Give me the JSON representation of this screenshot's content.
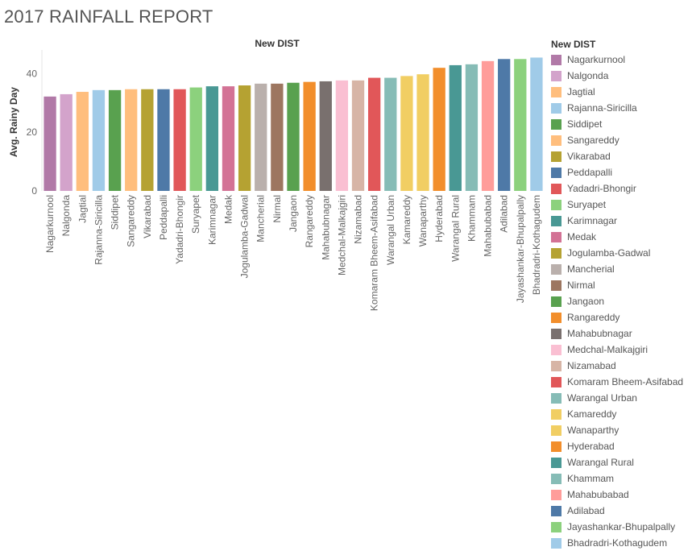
{
  "page": {
    "title": "2017 RAINFALL REPORT"
  },
  "chart_data": {
    "type": "bar",
    "title": "New DIST",
    "xlabel": "",
    "ylabel": "Avg. Rainy Day",
    "ylim": [
      0,
      47
    ],
    "yticks": [
      0,
      20,
      40
    ],
    "grid": false,
    "legend": {
      "title": "New DIST",
      "position": "right"
    },
    "categories": [
      "Nagarkurnool",
      "Nalgonda",
      "Jagtial",
      "Rajanna-Siricilla",
      "Siddipet",
      "Sangareddy",
      "Vikarabad",
      "Peddapalli",
      "Yadadri-Bhongir",
      "Suryapet",
      "Karimnagar",
      "Medak",
      "Jogulamba-Gadwal",
      "Mancherial",
      "Nirmal",
      "Jangaon",
      "Rangareddy",
      "Mahabubnagar",
      "Medchal-Malkajgiri",
      "Nizamabad",
      "Komaram Bheem-Asifabad",
      "Warangal Urban",
      "Kamareddy",
      "Wanaparthy",
      "Hyderabad",
      "Warangal Rural",
      "Khammam",
      "Mahabubabad",
      "Adilabad",
      "Jayashankar-Bhupalpally",
      "Bhadradri-Kothagudem"
    ],
    "values": [
      32.2,
      33.0,
      33.8,
      34.4,
      34.4,
      34.7,
      34.7,
      34.7,
      34.7,
      35.3,
      35.7,
      35.7,
      36.0,
      36.6,
      36.6,
      36.9,
      37.2,
      37.4,
      37.7,
      37.7,
      38.6,
      38.6,
      39.2,
      39.8,
      42.0,
      42.9,
      43.2,
      44.3,
      45.0,
      45.0,
      45.5
    ],
    "colors": [
      "#b179a7",
      "#d3a3cb",
      "#ffbe7d",
      "#a0cbe8",
      "#59a14f",
      "#ffbe7d",
      "#b5a232",
      "#4e79a7",
      "#e15759",
      "#8cd17d",
      "#499894",
      "#d37295",
      "#b5a232",
      "#bab0ac",
      "#9d7660",
      "#59a14f",
      "#f28e2b",
      "#79706e",
      "#fabfd2",
      "#d7b5a6",
      "#e15759",
      "#86bcb6",
      "#f1ce63",
      "#f1ce63",
      "#f28e2b",
      "#499894",
      "#86bcb6",
      "#ff9d9a",
      "#4e79a7",
      "#8cd17d",
      "#a0cbe8"
    ]
  }
}
